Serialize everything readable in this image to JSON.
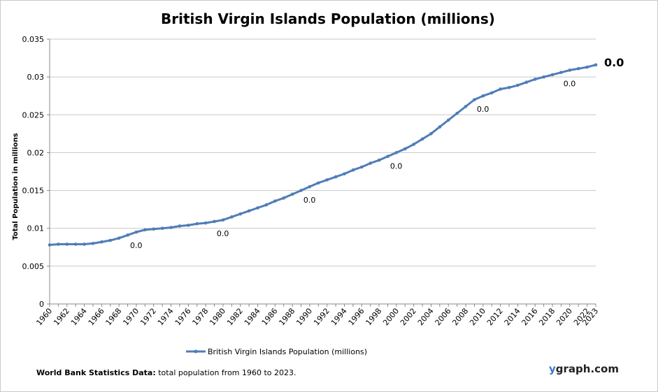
{
  "chart_data": {
    "type": "line",
    "title": "British Virgin Islands Population (millions)",
    "xlabel": "",
    "ylabel": "Total Population  in millions",
    "ylim": [
      0,
      0.035
    ],
    "y_ticks": [
      "0",
      "0.005",
      "0.01",
      "0.015",
      "0.02",
      "0.025",
      "0.03",
      "0.035"
    ],
    "x_tick_labels": [
      "1960",
      "1962",
      "1964",
      "1966",
      "1968",
      "1970",
      "1972",
      "1974",
      "1976",
      "1978",
      "1980",
      "1982",
      "1984",
      "1986",
      "1988",
      "1990",
      "1992",
      "1994",
      "1996",
      "1998",
      "2000",
      "2002",
      "2004",
      "2006",
      "2008",
      "2010",
      "2012",
      "2014",
      "2016",
      "2018",
      "2020",
      "2022",
      "2023"
    ],
    "grid": true,
    "legend": "bottom",
    "series": [
      {
        "name": "British Virgin Islands Population (millions)",
        "color": "#4f7db7",
        "x": [
          1960,
          1961,
          1962,
          1963,
          1964,
          1965,
          1966,
          1967,
          1968,
          1969,
          1970,
          1971,
          1972,
          1973,
          1974,
          1975,
          1976,
          1977,
          1978,
          1979,
          1980,
          1981,
          1982,
          1983,
          1984,
          1985,
          1986,
          1987,
          1988,
          1989,
          1990,
          1991,
          1992,
          1993,
          1994,
          1995,
          1996,
          1997,
          1998,
          1999,
          2000,
          2001,
          2002,
          2003,
          2004,
          2005,
          2006,
          2007,
          2008,
          2009,
          2010,
          2011,
          2012,
          2013,
          2014,
          2015,
          2016,
          2017,
          2018,
          2019,
          2020,
          2021,
          2022,
          2023
        ],
        "values": [
          0.0078,
          0.0079,
          0.0079,
          0.0079,
          0.0079,
          0.008,
          0.0082,
          0.0084,
          0.0087,
          0.0091,
          0.0095,
          0.0098,
          0.0099,
          0.01,
          0.0101,
          0.0103,
          0.0104,
          0.0106,
          0.0107,
          0.0109,
          0.0111,
          0.0115,
          0.0119,
          0.0123,
          0.0127,
          0.0131,
          0.0136,
          0.014,
          0.0145,
          0.015,
          0.0155,
          0.016,
          0.0164,
          0.0168,
          0.0172,
          0.0177,
          0.0181,
          0.0186,
          0.019,
          0.0195,
          0.02,
          0.0205,
          0.0211,
          0.0218,
          0.0225,
          0.0234,
          0.0243,
          0.0252,
          0.0261,
          0.027,
          0.0275,
          0.0279,
          0.0284,
          0.0286,
          0.0289,
          0.0293,
          0.0297,
          0.03,
          0.0303,
          0.0306,
          0.0309,
          0.0311,
          0.0313,
          0.0316
        ]
      }
    ],
    "annotations": [
      {
        "year": 1970,
        "text": "0.0"
      },
      {
        "year": 1980,
        "text": "0.0"
      },
      {
        "year": 1990,
        "text": "0.0"
      },
      {
        "year": 2000,
        "text": "0.0"
      },
      {
        "year": 2010,
        "text": "0.0"
      },
      {
        "year": 2020,
        "text": "0.0"
      },
      {
        "year": 2023,
        "text": "0.0",
        "emphasis": true
      }
    ]
  },
  "footer": {
    "source_label": "World Bank Statistics Data:",
    "source_text": " total population from 1960 to 2023."
  },
  "brand": {
    "y": "y",
    "rest": "graph.com"
  }
}
